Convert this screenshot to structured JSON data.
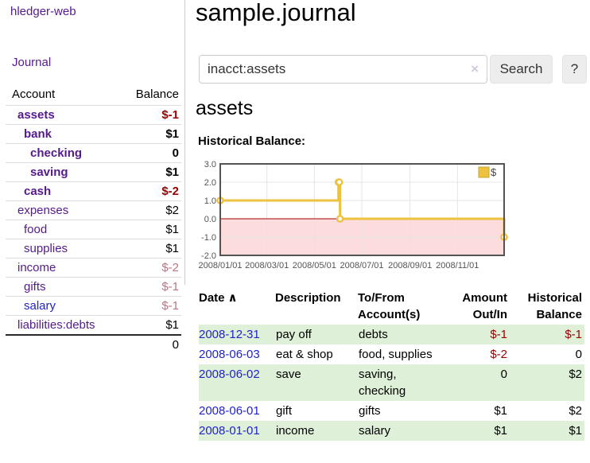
{
  "sidebar": {
    "app_title": "hledger-web",
    "journal_link": "Journal",
    "accounts_header": {
      "account": "Account",
      "balance": "Balance"
    },
    "accounts": [
      {
        "name": "assets",
        "indent": 1,
        "bold": true,
        "balance": "$-1",
        "balance_class": "neg-strong"
      },
      {
        "name": "bank",
        "indent": 2,
        "bold": true,
        "balance": "$1",
        "balance_class": ""
      },
      {
        "name": "checking",
        "indent": 3,
        "bold": true,
        "balance": "0",
        "balance_class": ""
      },
      {
        "name": "saving",
        "indent": 3,
        "bold": true,
        "balance": "$1",
        "balance_class": ""
      },
      {
        "name": "cash",
        "indent": 2,
        "bold": true,
        "balance": "$-2",
        "balance_class": "neg-strong"
      },
      {
        "name": "expenses",
        "indent": 1,
        "bold": false,
        "balance": "$2",
        "balance_class": ""
      },
      {
        "name": "food",
        "indent": 2,
        "bold": false,
        "balance": "$1",
        "balance_class": ""
      },
      {
        "name": "supplies",
        "indent": 2,
        "bold": false,
        "balance": "$1",
        "balance_class": ""
      },
      {
        "name": "income",
        "indent": 1,
        "bold": false,
        "balance": "$-2",
        "balance_class": "neg-soft"
      },
      {
        "name": "gifts",
        "indent": 2,
        "bold": false,
        "balance": "$-1",
        "balance_class": "neg-soft"
      },
      {
        "name": "salary",
        "indent": 2,
        "bold": false,
        "balance": "$-1",
        "balance_class": "neg-soft",
        "link_color": "blue"
      },
      {
        "name": "liabilities:debts",
        "indent": 1,
        "bold": false,
        "balance": "$1",
        "balance_class": ""
      }
    ],
    "total": "0"
  },
  "main": {
    "title": "sample.journal",
    "search": {
      "query": "inacct:assets",
      "clear_icon": "×",
      "button_label": "Search",
      "help_label": "?"
    },
    "account_heading": "assets"
  },
  "chart_data": {
    "type": "line",
    "title": "Historical Balance:",
    "x_range": [
      "2008-01-01",
      "2008-12-31"
    ],
    "x_ticks": [
      {
        "date": "2008-01-01",
        "label": "2008/01/01"
      },
      {
        "date": "2008-03-01",
        "label": "2008/03/01"
      },
      {
        "date": "2008-05-01",
        "label": "2008/05/01"
      },
      {
        "date": "2008-07-01",
        "label": "2008/07/01"
      },
      {
        "date": "2008-09-01",
        "label": "2008/09/01"
      },
      {
        "date": "2008-11-01",
        "label": "2008/11/01"
      }
    ],
    "ylim": [
      -2,
      3
    ],
    "y_ticks": [
      {
        "value": 3,
        "label": "3.0"
      },
      {
        "value": 2,
        "label": "2.0"
      },
      {
        "value": 1,
        "label": "1.0"
      },
      {
        "value": 0,
        "label": "0.0"
      },
      {
        "value": -1,
        "label": "-1.0"
      },
      {
        "value": -2,
        "label": "-2.0"
      }
    ],
    "grid": true,
    "legend": {
      "label": "$",
      "position": "top-right"
    },
    "series": [
      {
        "name": "$",
        "color": "#edc240",
        "steps": true,
        "points": [
          [
            "2008-01-01",
            1
          ],
          [
            "2008-06-01",
            2
          ],
          [
            "2008-06-02",
            2
          ],
          [
            "2008-06-03",
            0
          ],
          [
            "2008-12-31",
            -1
          ]
        ]
      }
    ],
    "negative_region_fill": "#fcdcdc",
    "zero_line_color": "#a40000",
    "border_color": "#545454",
    "grid_color": "#e4e4e4",
    "tick_color": "#545454"
  },
  "register": {
    "headers": {
      "date": "Date",
      "description": "Description",
      "accounts": "To/From Account(s)",
      "amount": "Amount Out/In",
      "balance": "Historical Balance"
    },
    "sort_arrow": "∧",
    "rows": [
      {
        "date": "2008-12-31",
        "description": "pay off",
        "accounts": "debts",
        "amount": "$-1",
        "balance": "$-1",
        "amount_neg": true,
        "balance_neg": true
      },
      {
        "date": "2008-06-03",
        "description": "eat & shop",
        "accounts": "food, supplies",
        "amount": "$-2",
        "balance": "0",
        "amount_neg": true,
        "balance_neg": false
      },
      {
        "date": "2008-06-02",
        "description": "save",
        "accounts": "saving, checking",
        "amount": "0",
        "balance": "$2",
        "amount_neg": false,
        "balance_neg": false
      },
      {
        "date": "2008-06-01",
        "description": "gift",
        "accounts": "gifts",
        "amount": "$1",
        "balance": "$2",
        "amount_neg": false,
        "balance_neg": false
      },
      {
        "date": "2008-01-01",
        "description": "income",
        "accounts": "salary",
        "amount": "$1",
        "balance": "$1",
        "amount_neg": false,
        "balance_neg": false
      }
    ]
  },
  "colors": {
    "link_purple": "#551a8b",
    "link_blue": "#2222cc",
    "negative_strong": "#990000",
    "negative_soft": "#bf7480",
    "row_green": "#dff0d8",
    "series_yellow": "#edc240"
  }
}
